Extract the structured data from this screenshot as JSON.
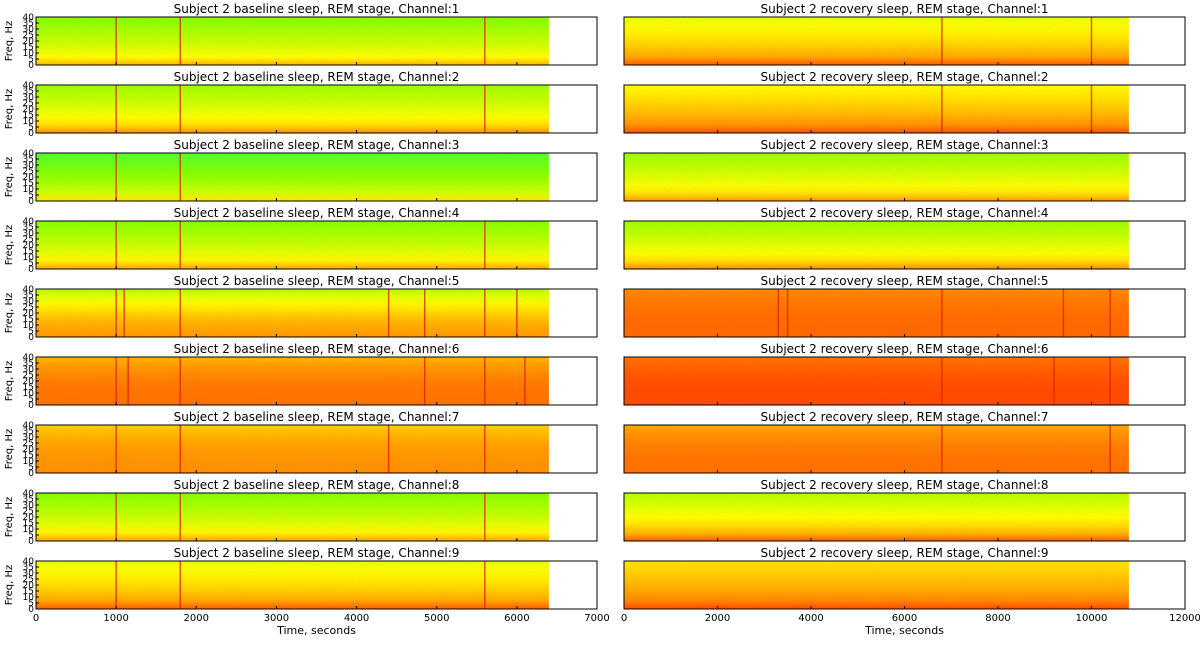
{
  "chart_data": [
    {
      "type": "heatmap",
      "title": "Subject 2 baseline sleep, REM stage, Channel:1",
      "ylabel": "Freq, Hz",
      "xlim": [
        0,
        7000
      ],
      "ylim": [
        0,
        40
      ],
      "x_ticks": [
        0,
        1000,
        2000,
        3000,
        4000,
        5000,
        6000,
        7000
      ],
      "y_ticks": [
        0,
        5,
        10,
        15,
        20,
        25,
        30,
        35,
        40
      ],
      "data_end": 6400,
      "intensity_low": 0.25,
      "intensity_high": 0.65,
      "profile": "plain",
      "event_lines": [
        1000,
        1800,
        5600
      ],
      "ylabel_shown": true,
      "xlabel": "",
      "x_ticks_shown": false
    },
    {
      "type": "heatmap",
      "title": "Subject 2   recovery sleep, REM stage, Channel:1",
      "ylabel": "",
      "xlim": [
        0,
        12000
      ],
      "ylim": [
        0,
        40
      ],
      "x_ticks": [
        0,
        2000,
        4000,
        6000,
        8000,
        10000,
        12000
      ],
      "y_ticks": [],
      "data_end": 10800,
      "intensity_low": 0.45,
      "intensity_high": 0.82,
      "profile": "plain",
      "event_lines": [
        6800,
        10000
      ],
      "ylabel_shown": false,
      "xlabel": "",
      "x_ticks_shown": false
    },
    {
      "type": "heatmap",
      "title": "Subject 2 baseline sleep, REM stage, Channel:2",
      "ylabel": "Freq, Hz",
      "xlim": [
        0,
        7000
      ],
      "ylim": [
        0,
        40
      ],
      "x_ticks": [
        0,
        1000,
        2000,
        3000,
        4000,
        5000,
        6000,
        7000
      ],
      "y_ticks": [
        0,
        5,
        10,
        15,
        20,
        25,
        30,
        35,
        40
      ],
      "data_end": 6400,
      "intensity_low": 0.3,
      "intensity_high": 0.72,
      "profile": "plain",
      "event_lines": [
        1000,
        1800,
        5600
      ],
      "ylabel_shown": true,
      "xlabel": "",
      "x_ticks_shown": false
    },
    {
      "type": "heatmap",
      "title": "Subject 2   recovery sleep, REM stage, Channel:2",
      "ylabel": "",
      "xlim": [
        0,
        12000
      ],
      "ylim": [
        0,
        40
      ],
      "x_ticks": [
        0,
        2000,
        4000,
        6000,
        8000,
        10000,
        12000
      ],
      "y_ticks": [],
      "data_end": 10800,
      "intensity_low": 0.5,
      "intensity_high": 0.85,
      "profile": "plain",
      "event_lines": [
        6800,
        10000
      ],
      "ylabel_shown": false,
      "xlabel": "",
      "x_ticks_shown": false
    },
    {
      "type": "heatmap",
      "title": "Subject 2 baseline sleep, REM stage, Channel:3",
      "ylabel": "Freq, Hz",
      "xlim": [
        0,
        7000
      ],
      "ylim": [
        0,
        40
      ],
      "x_ticks": [
        0,
        1000,
        2000,
        3000,
        4000,
        5000,
        6000,
        7000
      ],
      "y_ticks": [
        0,
        5,
        10,
        15,
        20,
        25,
        30,
        35,
        40
      ],
      "data_end": 6400,
      "intensity_low": 0.15,
      "intensity_high": 0.55,
      "profile": "plain",
      "event_lines": [
        1000,
        1800
      ],
      "ylabel_shown": true,
      "xlabel": "",
      "x_ticks_shown": false
    },
    {
      "type": "heatmap",
      "title": "Subject 2   recovery sleep, REM stage, Channel:3",
      "ylabel": "",
      "xlim": [
        0,
        12000
      ],
      "ylim": [
        0,
        40
      ],
      "x_ticks": [
        0,
        2000,
        4000,
        6000,
        8000,
        10000,
        12000
      ],
      "y_ticks": [],
      "data_end": 10800,
      "intensity_low": 0.3,
      "intensity_high": 0.7,
      "profile": "plain",
      "event_lines": [],
      "ylabel_shown": false,
      "xlabel": "",
      "x_ticks_shown": false
    },
    {
      "type": "heatmap",
      "title": "Subject 2 baseline sleep, REM stage, Channel:4",
      "ylabel": "Freq, Hz",
      "xlim": [
        0,
        7000
      ],
      "ylim": [
        0,
        40
      ],
      "x_ticks": [
        0,
        1000,
        2000,
        3000,
        4000,
        5000,
        6000,
        7000
      ],
      "y_ticks": [
        0,
        5,
        10,
        15,
        20,
        25,
        30,
        35,
        40
      ],
      "data_end": 6400,
      "intensity_low": 0.25,
      "intensity_high": 0.68,
      "profile": "plain",
      "event_lines": [
        1000,
        1800,
        5600
      ],
      "ylabel_shown": true,
      "xlabel": "",
      "x_ticks_shown": false
    },
    {
      "type": "heatmap",
      "title": "Subject 2   recovery sleep, REM stage, Channel:4",
      "ylabel": "",
      "xlim": [
        0,
        12000
      ],
      "ylim": [
        0,
        40
      ],
      "x_ticks": [
        0,
        2000,
        4000,
        6000,
        8000,
        10000,
        12000
      ],
      "y_ticks": [],
      "data_end": 10800,
      "intensity_low": 0.3,
      "intensity_high": 0.72,
      "profile": "plain",
      "event_lines": [],
      "ylabel_shown": false,
      "xlabel": "",
      "x_ticks_shown": false
    },
    {
      "type": "heatmap",
      "title": "Subject 2 baseline sleep, REM stage, Channel:5",
      "ylabel": "Freq, Hz",
      "xlim": [
        0,
        7000
      ],
      "ylim": [
        0,
        40
      ],
      "x_ticks": [
        0,
        1000,
        2000,
        3000,
        4000,
        5000,
        6000,
        7000
      ],
      "y_ticks": [
        0,
        5,
        10,
        15,
        20,
        25,
        30,
        35,
        40
      ],
      "data_end": 6400,
      "intensity_low": 0.35,
      "intensity_high": 0.7,
      "profile": "mid",
      "event_lines": [
        1000,
        1100,
        1800,
        4400,
        4850,
        5600,
        6000
      ],
      "ylabel_shown": true,
      "xlabel": "",
      "x_ticks_shown": false
    },
    {
      "type": "heatmap",
      "title": "Subject 2   recovery sleep, REM stage, Channel:5",
      "ylabel": "",
      "xlim": [
        0,
        12000
      ],
      "ylim": [
        0,
        40
      ],
      "x_ticks": [
        0,
        2000,
        4000,
        6000,
        8000,
        10000,
        12000
      ],
      "y_ticks": [],
      "data_end": 10800,
      "intensity_low": 0.68,
      "intensity_high": 0.8,
      "profile": "flat",
      "event_lines": [
        3300,
        3500,
        6800,
        9400,
        10400
      ],
      "ylabel_shown": false,
      "xlabel": "",
      "x_ticks_shown": false
    },
    {
      "type": "heatmap",
      "title": "Subject 2 baseline sleep, REM stage, Channel:6",
      "ylabel": "Freq, Hz",
      "xlim": [
        0,
        7000
      ],
      "ylim": [
        0,
        40
      ],
      "x_ticks": [
        0,
        1000,
        2000,
        3000,
        4000,
        5000,
        6000,
        7000
      ],
      "y_ticks": [
        0,
        5,
        10,
        15,
        20,
        25,
        30,
        35,
        40
      ],
      "data_end": 6400,
      "intensity_low": 0.55,
      "intensity_high": 0.78,
      "profile": "flat",
      "event_lines": [
        1000,
        1150,
        1800,
        4850,
        5600,
        6100
      ],
      "ylabel_shown": true,
      "xlabel": "",
      "x_ticks_shown": false
    },
    {
      "type": "heatmap",
      "title": "Subject 2   recovery sleep, REM stage, Channel:6",
      "ylabel": "",
      "xlim": [
        0,
        12000
      ],
      "ylim": [
        0,
        40
      ],
      "x_ticks": [
        0,
        2000,
        4000,
        6000,
        8000,
        10000,
        12000
      ],
      "y_ticks": [],
      "data_end": 10800,
      "intensity_low": 0.72,
      "intensity_high": 0.86,
      "profile": "flat",
      "event_lines": [
        6800,
        9200,
        10400
      ],
      "ylabel_shown": false,
      "xlabel": "",
      "x_ticks_shown": false
    },
    {
      "type": "heatmap",
      "title": "Subject 2 baseline sleep, REM stage, Channel:7",
      "ylabel": "Freq, Hz",
      "xlim": [
        0,
        7000
      ],
      "ylim": [
        0,
        40
      ],
      "x_ticks": [
        0,
        1000,
        2000,
        3000,
        4000,
        5000,
        6000,
        7000
      ],
      "y_ticks": [
        0,
        5,
        10,
        15,
        20,
        25,
        30,
        35,
        40
      ],
      "data_end": 6400,
      "intensity_low": 0.5,
      "intensity_high": 0.72,
      "profile": "flat",
      "event_lines": [
        1000,
        1800,
        4400,
        5600
      ],
      "ylabel_shown": true,
      "xlabel": "",
      "x_ticks_shown": false
    },
    {
      "type": "heatmap",
      "title": "Subject 2   recovery sleep, REM stage, Channel:7",
      "ylabel": "",
      "xlim": [
        0,
        12000
      ],
      "ylim": [
        0,
        40
      ],
      "x_ticks": [
        0,
        2000,
        4000,
        6000,
        8000,
        10000,
        12000
      ],
      "y_ticks": [],
      "data_end": 10800,
      "intensity_low": 0.6,
      "intensity_high": 0.78,
      "profile": "flat",
      "event_lines": [
        6800,
        10400
      ],
      "ylabel_shown": false,
      "xlabel": "",
      "x_ticks_shown": false
    },
    {
      "type": "heatmap",
      "title": "Subject 2 baseline sleep, REM stage, Channel:8",
      "ylabel": "Freq, Hz",
      "xlim": [
        0,
        7000
      ],
      "ylim": [
        0,
        40
      ],
      "x_ticks": [
        0,
        1000,
        2000,
        3000,
        4000,
        5000,
        6000,
        7000
      ],
      "y_ticks": [
        0,
        5,
        10,
        15,
        20,
        25,
        30,
        35,
        40
      ],
      "data_end": 6400,
      "intensity_low": 0.25,
      "intensity_high": 0.68,
      "profile": "plain",
      "event_lines": [
        1000,
        1800,
        5600
      ],
      "ylabel_shown": true,
      "xlabel": "",
      "x_ticks_shown": false
    },
    {
      "type": "heatmap",
      "title": "Subject 2   recovery sleep, REM stage, Channel:8",
      "ylabel": "",
      "xlim": [
        0,
        12000
      ],
      "ylim": [
        0,
        40
      ],
      "x_ticks": [
        0,
        2000,
        4000,
        6000,
        8000,
        10000,
        12000
      ],
      "y_ticks": [],
      "data_end": 10800,
      "intensity_low": 0.35,
      "intensity_high": 0.82,
      "profile": "plain",
      "event_lines": [],
      "ylabel_shown": false,
      "xlabel": "",
      "x_ticks_shown": false
    },
    {
      "type": "heatmap",
      "title": "Subject 2 baseline sleep, REM stage, Channel:9",
      "ylabel": "Freq, Hz",
      "xlim": [
        0,
        7000
      ],
      "ylim": [
        0,
        40
      ],
      "x_ticks": [
        0,
        1000,
        2000,
        3000,
        4000,
        5000,
        6000,
        7000
      ],
      "y_ticks": [
        0,
        5,
        10,
        15,
        20,
        25,
        30,
        35,
        40
      ],
      "data_end": 6400,
      "intensity_low": 0.45,
      "intensity_high": 0.82,
      "profile": "plain",
      "event_lines": [
        1000,
        1800,
        5600
      ],
      "ylabel_shown": true,
      "xlabel": "Time, seconds",
      "x_ticks_shown": true
    },
    {
      "type": "heatmap",
      "title": "Subject 2   recovery sleep, REM stage, Channel:9",
      "ylabel": "",
      "xlim": [
        0,
        12000
      ],
      "ylim": [
        0,
        40
      ],
      "x_ticks": [
        0,
        2000,
        4000,
        6000,
        8000,
        10000,
        12000
      ],
      "y_ticks": [],
      "data_end": 10800,
      "intensity_low": 0.55,
      "intensity_high": 0.86,
      "profile": "plain",
      "event_lines": [],
      "ylabel_shown": false,
      "xlabel": "Time, seconds",
      "x_ticks_shown": true
    }
  ],
  "colormap": [
    "#00ff80",
    "#80ff00",
    "#ffff00",
    "#ff8000",
    "#ff0000"
  ]
}
